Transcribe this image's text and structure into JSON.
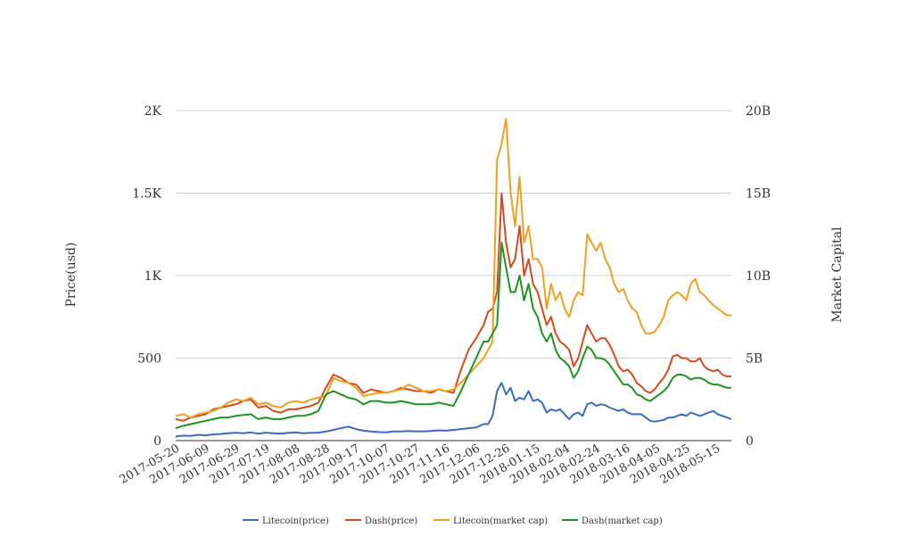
{
  "chart_data": {
    "type": "line",
    "x_axis": {
      "tick_labels": [
        "2017-05-20",
        "2017-06-09",
        "2017-06-29",
        "2017-07-19",
        "2017-08-08",
        "2017-08-28",
        "2017-09-17",
        "2017-10-07",
        "2017-10-27",
        "2017-11-16",
        "2017-12-06",
        "2017-12-26",
        "2018-01-15",
        "2018-02-04",
        "2018-02-24",
        "2018-03-16",
        "2018-04-05",
        "2018-04-25",
        "2018-05-15"
      ]
    },
    "y_left": {
      "label": "Price(usd)",
      "range": [
        0,
        2000
      ],
      "ticks": [
        0,
        500,
        1000,
        1500,
        2000
      ],
      "tick_labels": [
        "0",
        "500",
        "1K",
        "1.5K",
        "2K"
      ]
    },
    "y_right": {
      "label": "Market Capital",
      "range": [
        0,
        20000000000
      ],
      "ticks": [
        0,
        5000000000,
        10000000000,
        15000000000,
        20000000000
      ],
      "tick_labels": [
        "0",
        "5B",
        "10B",
        "15B",
        "20B"
      ]
    },
    "grid": true,
    "legend_position": "bottom",
    "x": [
      "2017-05-17",
      "2017-05-22",
      "2017-05-27",
      "2017-06-01",
      "2017-06-06",
      "2017-06-11",
      "2017-06-16",
      "2017-06-21",
      "2017-06-26",
      "2017-07-01",
      "2017-07-06",
      "2017-07-11",
      "2017-07-16",
      "2017-07-21",
      "2017-07-26",
      "2017-07-31",
      "2017-08-05",
      "2017-08-10",
      "2017-08-15",
      "2017-08-20",
      "2017-08-25",
      "2017-08-30",
      "2017-09-04",
      "2017-09-09",
      "2017-09-14",
      "2017-09-19",
      "2017-09-24",
      "2017-09-29",
      "2017-10-04",
      "2017-10-09",
      "2017-10-14",
      "2017-10-19",
      "2017-10-24",
      "2017-10-29",
      "2017-11-03",
      "2017-11-08",
      "2017-11-13",
      "2017-11-18",
      "2017-11-23",
      "2017-11-28",
      "2017-12-03",
      "2017-12-08",
      "2017-12-11",
      "2017-12-14",
      "2017-12-17",
      "2017-12-20",
      "2017-12-23",
      "2017-12-26",
      "2017-12-29",
      "2018-01-01",
      "2018-01-04",
      "2018-01-07",
      "2018-01-10",
      "2018-01-13",
      "2018-01-16",
      "2018-01-19",
      "2018-01-22",
      "2018-01-25",
      "2018-01-28",
      "2018-01-31",
      "2018-02-03",
      "2018-02-06",
      "2018-02-09",
      "2018-02-12",
      "2018-02-15",
      "2018-02-18",
      "2018-02-21",
      "2018-02-24",
      "2018-02-27",
      "2018-03-02",
      "2018-03-05",
      "2018-03-08",
      "2018-03-11",
      "2018-03-14",
      "2018-03-17",
      "2018-03-20",
      "2018-03-23",
      "2018-03-26",
      "2018-03-29",
      "2018-04-01",
      "2018-04-04",
      "2018-04-07",
      "2018-04-10",
      "2018-04-13",
      "2018-04-16",
      "2018-04-19",
      "2018-04-22",
      "2018-04-25",
      "2018-04-28",
      "2018-05-01",
      "2018-05-04",
      "2018-05-07",
      "2018-05-10",
      "2018-05-13",
      "2018-05-16",
      "2018-05-19",
      "2018-05-22"
    ],
    "series": [
      {
        "name": "Litecoin(price)",
        "axis": "left",
        "color": "#3a6bbf",
        "values": [
          25,
          30,
          28,
          35,
          32,
          38,
          40,
          45,
          48,
          45,
          50,
          42,
          48,
          45,
          42,
          47,
          50,
          45,
          47,
          48,
          55,
          65,
          75,
          85,
          70,
          60,
          55,
          52,
          50,
          55,
          55,
          58,
          56,
          56,
          58,
          62,
          60,
          65,
          70,
          75,
          80,
          100,
          100,
          150,
          300,
          350,
          280,
          320,
          240,
          260,
          250,
          300,
          240,
          250,
          230,
          170,
          190,
          180,
          190,
          160,
          130,
          160,
          170,
          150,
          220,
          230,
          210,
          220,
          215,
          200,
          190,
          180,
          190,
          170,
          160,
          160,
          160,
          140,
          120,
          115,
          120,
          125,
          140,
          140,
          150,
          160,
          150,
          170,
          160,
          150,
          160,
          170,
          180,
          160,
          150,
          140,
          130
        ]
      },
      {
        "name": "Dash(price)",
        "axis": "left",
        "color": "#d94a1a",
        "values": [
          130,
          120,
          140,
          150,
          160,
          190,
          200,
          210,
          220,
          240,
          250,
          200,
          210,
          180,
          170,
          190,
          190,
          200,
          210,
          230,
          320,
          400,
          380,
          350,
          340,
          290,
          310,
          300,
          290,
          300,
          320,
          310,
          300,
          300,
          290,
          310,
          300,
          290,
          430,
          550,
          620,
          700,
          780,
          800,
          900,
          1500,
          1200,
          1050,
          1100,
          1300,
          1000,
          1100,
          950,
          900,
          800,
          700,
          750,
          650,
          600,
          580,
          550,
          450,
          500,
          600,
          700,
          650,
          600,
          620,
          620,
          580,
          520,
          450,
          420,
          430,
          400,
          350,
          330,
          300,
          290,
          310,
          350,
          380,
          430,
          510,
          520,
          500,
          500,
          480,
          480,
          500,
          450,
          430,
          420,
          430,
          400,
          390,
          390
        ]
      },
      {
        "name": "Litecoin(market cap)",
        "axis": "right",
        "color": "#f0a020",
        "values": [
          1500000000,
          1600000000,
          1400000000,
          1600000000,
          1700000000,
          1800000000,
          2000000000,
          2300000000,
          2500000000,
          2400000000,
          2600000000,
          2200000000,
          2300000000,
          2100000000,
          2000000000,
          2300000000,
          2400000000,
          2300000000,
          2500000000,
          2600000000,
          2700000000,
          3800000000,
          3600000000,
          3500000000,
          3200000000,
          2700000000,
          2800000000,
          2900000000,
          2900000000,
          3000000000,
          3100000000,
          3400000000,
          3200000000,
          3000000000,
          3000000000,
          3100000000,
          3000000000,
          3100000000,
          3500000000,
          4000000000,
          4500000000,
          5000000000,
          5500000000,
          6000000000,
          17000000000,
          18000000000,
          19500000000,
          15000000000,
          13000000000,
          16000000000,
          12000000000,
          13000000000,
          11000000000,
          11000000000,
          10500000000,
          8000000000,
          9500000000,
          8500000000,
          9000000000,
          8000000000,
          7500000000,
          8500000000,
          9000000000,
          8800000000,
          12500000000,
          12000000000,
          11500000000,
          12000000000,
          11000000000,
          10500000000,
          9500000000,
          9000000000,
          9200000000,
          8500000000,
          8000000000,
          7800000000,
          7000000000,
          6500000000,
          6500000000,
          6600000000,
          7000000000,
          7500000000,
          8500000000,
          8800000000,
          9000000000,
          8800000000,
          8500000000,
          9500000000,
          9800000000,
          9000000000,
          8800000000,
          8500000000,
          8200000000,
          8000000000,
          7800000000,
          7600000000,
          7600000000
        ]
      },
      {
        "name": "Dash(market cap)",
        "axis": "right",
        "color": "#1e9420",
        "values": [
          750000000,
          900000000,
          1000000000,
          1100000000,
          1200000000,
          1300000000,
          1400000000,
          1400000000,
          1500000000,
          1550000000,
          1600000000,
          1300000000,
          1400000000,
          1300000000,
          1300000000,
          1400000000,
          1500000000,
          1500000000,
          1600000000,
          1800000000,
          2800000000,
          3000000000,
          2800000000,
          2600000000,
          2500000000,
          2200000000,
          2400000000,
          2400000000,
          2300000000,
          2300000000,
          2400000000,
          2300000000,
          2200000000,
          2200000000,
          2200000000,
          2300000000,
          2200000000,
          2100000000,
          3000000000,
          4000000000,
          5000000000,
          6000000000,
          6000000000,
          6500000000,
          7000000000,
          12000000000,
          10500000000,
          9000000000,
          9000000000,
          10000000000,
          8500000000,
          9500000000,
          8000000000,
          7500000000,
          6500000000,
          6000000000,
          6500000000,
          5500000000,
          5000000000,
          4800000000,
          4500000000,
          3800000000,
          4200000000,
          5000000000,
          5700000000,
          5500000000,
          5000000000,
          5000000000,
          4900000000,
          4600000000,
          4200000000,
          3800000000,
          3400000000,
          3400000000,
          3200000000,
          2800000000,
          2700000000,
          2500000000,
          2400000000,
          2600000000,
          2800000000,
          3000000000,
          3300000000,
          3800000000,
          4000000000,
          4000000000,
          3900000000,
          3700000000,
          3800000000,
          3800000000,
          3700000000,
          3500000000,
          3400000000,
          3400000000,
          3300000000,
          3200000000,
          3200000000
        ]
      }
    ]
  }
}
